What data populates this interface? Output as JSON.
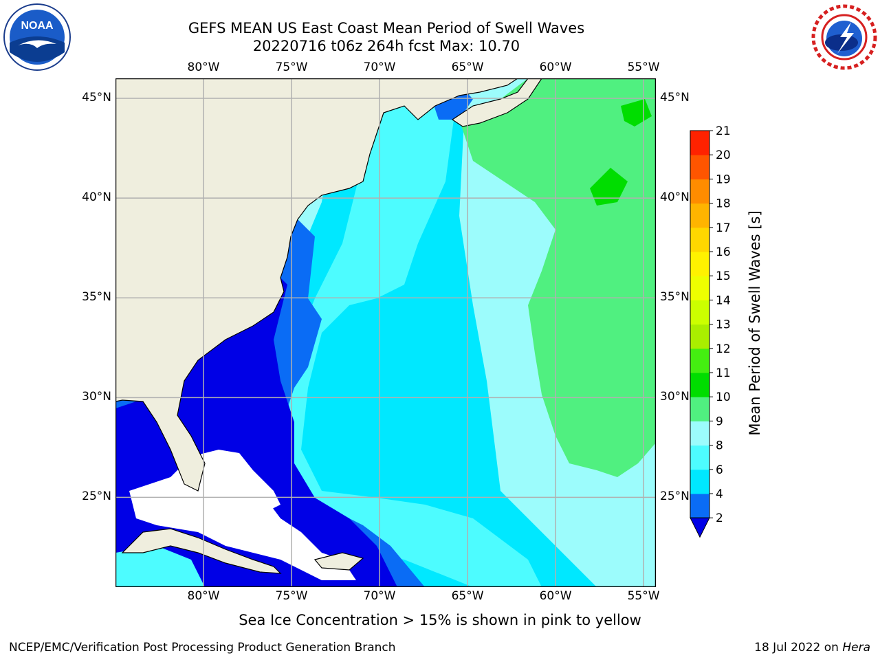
{
  "header": {
    "title_line1": "GEFS MEAN US East Coast Mean Period of Swell Waves",
    "title_line2": "20220716 t06z 264h fcst   Max: 10.70"
  },
  "logos": {
    "left": {
      "icon": "noaa-logo-icon",
      "text": "NOAA"
    },
    "right": {
      "icon": "nws-logo-icon"
    }
  },
  "map": {
    "lon_labels": [
      "80°W",
      "75°W",
      "70°W",
      "65°W",
      "60°W",
      "55°W"
    ],
    "lat_labels": [
      "45°N",
      "40°N",
      "35°N",
      "30°N",
      "25°N"
    ],
    "lon_range": [
      -85,
      -54.3
    ],
    "lat_range": [
      20.5,
      46
    ],
    "colors": {
      "land": "#efeede",
      "grid": "#b0b0b0",
      "coast": "#000000"
    }
  },
  "colorbar": {
    "label": "Mean Period of Swell Waves [s]",
    "ticks": [
      "2",
      "4",
      "6",
      "8",
      "9",
      "10",
      "11",
      "12",
      "13",
      "14",
      "15",
      "16",
      "17",
      "18",
      "19",
      "20",
      "21"
    ],
    "colors": [
      "#0000e6",
      "#0a6cf5",
      "#00e8ff",
      "#4dfcff",
      "#9cfcfc",
      "#50f080",
      "#00dd00",
      "#44ee11",
      "#aaee00",
      "#ccff00",
      "#eeff00",
      "#fff200",
      "#ffd700",
      "#ffb400",
      "#ff8c00",
      "#ff5500",
      "#ff2200",
      "#ff0000"
    ],
    "extend": "min"
  },
  "chart_data": {
    "type": "heatmap",
    "variable": "Mean Period of Swell Waves [s]",
    "max": 10.7,
    "levels": [
      2,
      4,
      6,
      8,
      9,
      10,
      11,
      12,
      13,
      14,
      15,
      16,
      17,
      18,
      19,
      20,
      21
    ]
  },
  "subtitle": "Sea Ice Concentration > 15% is shown in pink to yellow",
  "footer": {
    "left": "NCEP/EMC/Verification Post Processing Product Generation Branch",
    "date": "18 Jul 2022 on ",
    "machine": "Hera"
  }
}
